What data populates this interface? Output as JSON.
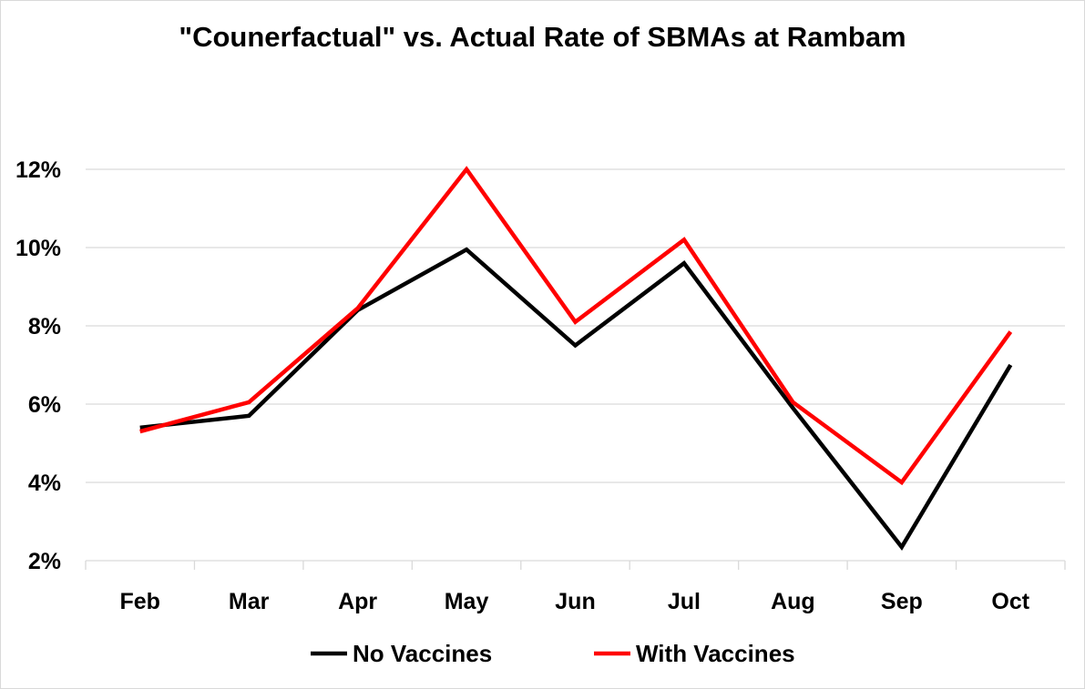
{
  "chart_data": {
    "type": "line",
    "title": "\"Counerfactual\" vs. Actual Rate of SBMAs at Rambam",
    "xlabel": "",
    "ylabel": "",
    "categories": [
      "Feb",
      "Mar",
      "Apr",
      "May",
      "Jun",
      "Jul",
      "Aug",
      "Sep",
      "Oct"
    ],
    "ylim": [
      2,
      12
    ],
    "yticks": [
      2,
      4,
      6,
      8,
      10,
      12
    ],
    "ytick_labels": [
      "2%",
      "4%",
      "6%",
      "8%",
      "10%",
      "12%"
    ],
    "grid": true,
    "legend_position": "bottom",
    "series": [
      {
        "name": "No Vaccines",
        "color": "#000000",
        "values": [
          5.4,
          5.7,
          8.4,
          9.95,
          7.5,
          9.6,
          5.9,
          2.35,
          7.0
        ]
      },
      {
        "name": "With Vaccines",
        "color": "#ff0000",
        "values": [
          5.3,
          6.05,
          8.45,
          12.0,
          8.1,
          10.2,
          6.05,
          4.0,
          7.85
        ]
      }
    ]
  }
}
